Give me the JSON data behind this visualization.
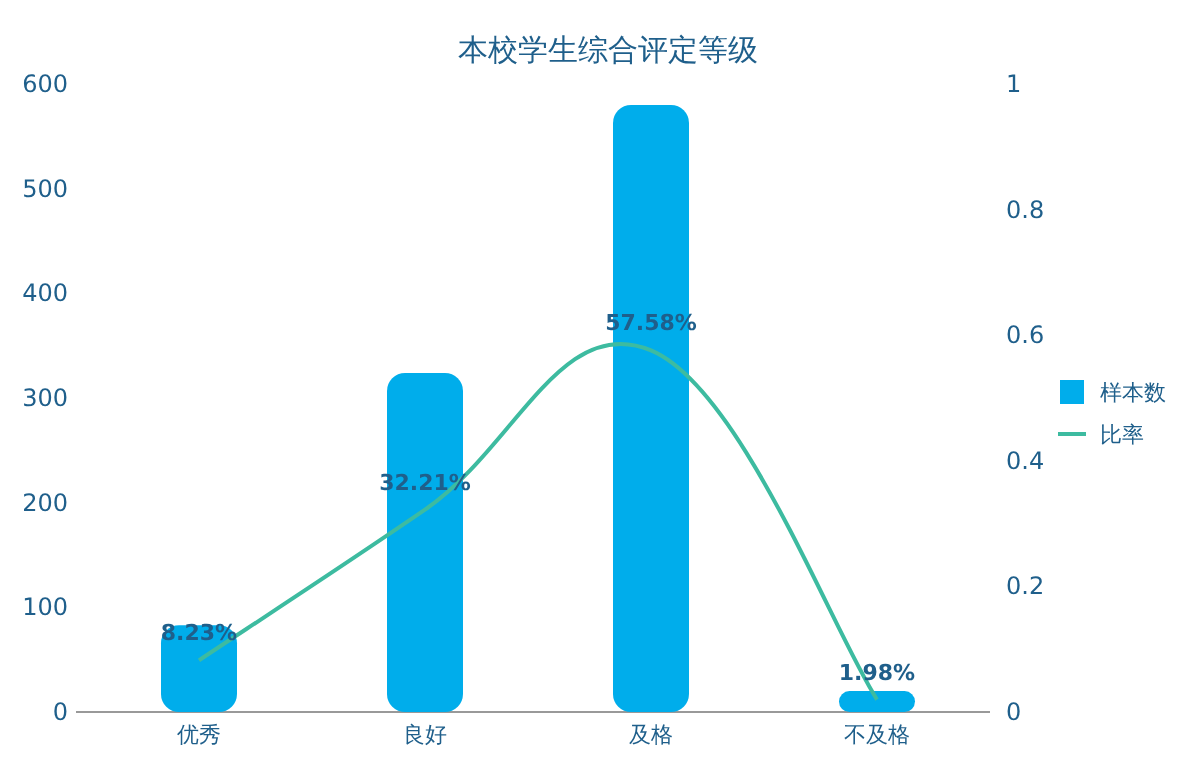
{
  "chart_data": {
    "type": "bar",
    "title": "本校学生综合评定等级",
    "categories": [
      "优秀",
      "良好",
      "及格",
      "不及格"
    ],
    "series": [
      {
        "name": "样本数",
        "color": "#00adeb",
        "values": [
          83,
          324,
          580,
          20
        ]
      },
      {
        "name": "比率",
        "type": "line",
        "axis": "y2",
        "color": "#3dbba0",
        "values": [
          0.0823,
          0.3221,
          0.5758,
          0.0198
        ],
        "value_labels": [
          "8.23%",
          "32.21%",
          "57.58%",
          "1.98%"
        ]
      }
    ],
    "ylim": [
      0,
      600
    ],
    "yticks": [
      0,
      100,
      200,
      300,
      400,
      500,
      600
    ],
    "y2lim": [
      0,
      1
    ],
    "y2ticks": [
      0,
      0.2,
      0.4,
      0.6,
      0.8,
      1
    ],
    "grid": false,
    "legend": "right",
    "marker": "none",
    "line_style": "solid"
  }
}
